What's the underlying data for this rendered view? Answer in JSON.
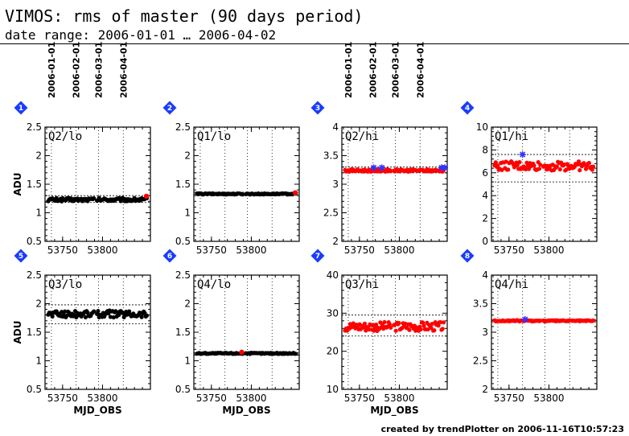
{
  "header": {
    "title": "VIMOS: rms of master (90 days period)",
    "subtitle": "date range: 2006-01-01 … 2006-04-02"
  },
  "footer": "created by trendPlotter on 2006-11-16T10:57:23",
  "date_ticks": {
    "labels": [
      "2006-01-01",
      "2006-02-01",
      "2006-03-01",
      "2006-04-01"
    ],
    "mjd": [
      53736,
      53767,
      53795,
      53826
    ]
  },
  "colors": {
    "normal": "#000000",
    "high": "#ff0000",
    "flagged": "#3333ff",
    "badge": "#1a3cff",
    "dotted": "#000000"
  },
  "chart_data": [
    {
      "type": "scatter",
      "panel": "1",
      "tag": "Q2/lo",
      "ylabel": "ADU",
      "xlabel": "",
      "xlim": [
        53728,
        53860
      ],
      "ylim": [
        0.5,
        2.5
      ],
      "yticks": [
        0.5,
        1,
        1.5,
        2,
        2.5
      ],
      "xticks": [
        53750,
        53800
      ],
      "hlines": [
        1.18,
        1.3
      ],
      "color": "normal",
      "base": 1.23,
      "amp": 0.03,
      "flagged": [],
      "highlight": [
        53855
      ]
    },
    {
      "type": "scatter",
      "panel": "2",
      "tag": "Q1/lo",
      "ylabel": "",
      "xlabel": "",
      "xlim": [
        53728,
        53860
      ],
      "ylim": [
        0.5,
        2.5
      ],
      "yticks": [
        0.5,
        1,
        1.5,
        2,
        2.5
      ],
      "xticks": [
        53750,
        53800
      ],
      "hlines": [
        1.32,
        1.36
      ],
      "color": "normal",
      "base": 1.33,
      "amp": 0.01,
      "flagged": [],
      "highlight": [
        53855
      ]
    },
    {
      "type": "scatter",
      "panel": "3",
      "tag": "Q2/hi",
      "ylabel": "",
      "xlabel": "",
      "xlim": [
        53728,
        53860
      ],
      "ylim": [
        2,
        4
      ],
      "yticks": [
        2,
        2.5,
        3,
        3.5,
        4
      ],
      "xticks": [
        53750,
        53800
      ],
      "hlines": [
        3.2,
        3.3
      ],
      "color": "high",
      "base": 3.24,
      "amp": 0.02,
      "flagged": [
        53768,
        53778,
        53853,
        53857
      ],
      "highlight": []
    },
    {
      "type": "scatter",
      "panel": "4",
      "tag": "Q1/hi",
      "ylabel": "",
      "xlabel": "",
      "xlim": [
        53728,
        53860
      ],
      "ylim": [
        0,
        10
      ],
      "yticks": [
        0,
        2,
        4,
        6,
        8,
        10
      ],
      "xticks": [
        53750,
        53800
      ],
      "hlines": [
        5.2,
        7.6
      ],
      "color": "high",
      "base": 6.6,
      "amp": 0.4,
      "flagged": [
        53767
      ],
      "highlight": []
    },
    {
      "type": "scatter",
      "panel": "5",
      "tag": "Q3/lo",
      "ylabel": "ADU",
      "xlabel": "MJD_OBS",
      "xlim": [
        53728,
        53860
      ],
      "ylim": [
        0.5,
        2.5
      ],
      "yticks": [
        0.5,
        1,
        1.5,
        2,
        2.5
      ],
      "xticks": [
        53750,
        53800
      ],
      "hlines": [
        1.65,
        1.98
      ],
      "color": "normal",
      "base": 1.82,
      "amp": 0.06,
      "flagged": [],
      "highlight": []
    },
    {
      "type": "scatter",
      "panel": "6",
      "tag": "Q4/lo",
      "ylabel": "",
      "xlabel": "MJD_OBS",
      "xlim": [
        53728,
        53860
      ],
      "ylim": [
        0.5,
        2.5
      ],
      "yticks": [
        0.5,
        1,
        1.5,
        2,
        2.5
      ],
      "xticks": [
        53750,
        53800
      ],
      "hlines": [
        1.12,
        1.14
      ],
      "color": "normal",
      "base": 1.13,
      "amp": 0.01,
      "flagged": [],
      "highlight": [
        53788
      ]
    },
    {
      "type": "scatter",
      "panel": "7",
      "tag": "Q3/hi",
      "ylabel": "",
      "xlabel": "MJD_OBS",
      "xlim": [
        53728,
        53860
      ],
      "ylim": [
        10,
        40
      ],
      "yticks": [
        10,
        20,
        30,
        40
      ],
      "xticks": [
        53750,
        53800
      ],
      "hlines": [
        24,
        29.5
      ],
      "color": "high",
      "base": 26.5,
      "amp": 1.2,
      "flagged": [],
      "highlight": []
    },
    {
      "type": "scatter",
      "panel": "8",
      "tag": "Q4/hi",
      "ylabel": "",
      "xlabel": "",
      "xlim": [
        53728,
        53860
      ],
      "ylim": [
        2,
        4
      ],
      "yticks": [
        2,
        2.5,
        3,
        3.5,
        4
      ],
      "xticks": [
        53750,
        53800
      ],
      "hlines": [
        3.18,
        3.22
      ],
      "color": "high",
      "base": 3.2,
      "amp": 0.01,
      "flagged": [
        53770
      ],
      "highlight": []
    }
  ]
}
